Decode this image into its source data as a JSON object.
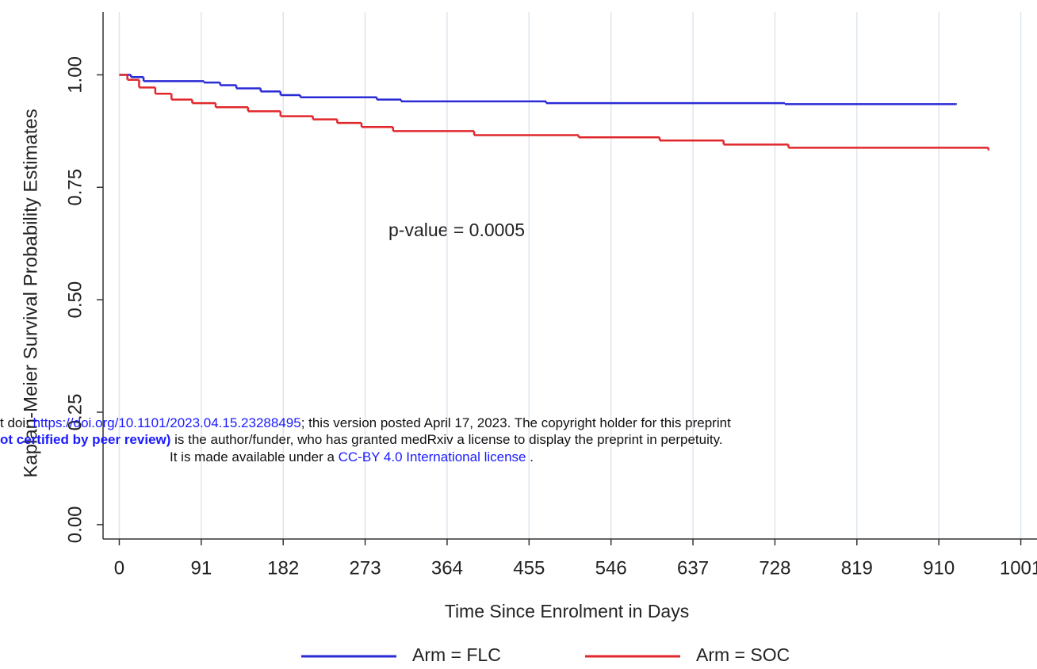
{
  "chart_data": {
    "type": "step",
    "ylabel": "Kaplan-Meier Survival Probability Estimates",
    "xlabel": "Time Since Enrolment in Days",
    "annotation": "p-value = 0.0005",
    "xlim": [
      -18,
      1019
    ],
    "ylim": [
      -0.032,
      1.14
    ],
    "xticks": [
      0,
      91,
      182,
      273,
      364,
      455,
      546,
      637,
      728,
      819,
      910,
      1001
    ],
    "yticks": [
      {
        "value": 0,
        "label": "0.00"
      },
      0.25,
      {
        "value": 0.5,
        "label": "0.50"
      },
      0.75,
      {
        "value": 1,
        "label": "1.00"
      }
    ],
    "grid": "x",
    "series": [
      {
        "name": "Arm = FLC",
        "color": "#2a2ad6",
        "x": [
          0,
          13,
          27,
          94,
          112,
          130,
          157,
          179,
          201,
          286,
          313,
          474,
          739,
          929
        ],
        "values": [
          1.0,
          0.995,
          0.986,
          0.983,
          0.977,
          0.97,
          0.963,
          0.955,
          0.95,
          0.945,
          0.941,
          0.937,
          0.935,
          0.935
        ]
      },
      {
        "name": "Arm = SOC",
        "color": "#e0282c",
        "x": [
          0,
          9,
          22,
          40,
          58,
          81,
          107,
          143,
          179,
          215,
          242,
          269,
          304,
          394,
          510,
          600,
          671,
          743,
          965
        ],
        "values": [
          1.0,
          0.989,
          0.972,
          0.958,
          0.945,
          0.937,
          0.928,
          0.919,
          0.908,
          0.901,
          0.893,
          0.884,
          0.875,
          0.866,
          0.861,
          0.854,
          0.845,
          0.838,
          0.833
        ]
      }
    ]
  },
  "watermark": {
    "line1": [
      "t doi: ",
      "https://doi.org/10.1101/2023.04.15.23288495",
      "; this version posted April 17, 2023. The copyright holder for this preprint"
    ],
    "line2": [
      "ot certified by peer review)",
      " is the author/funder, who has granted medRxiv a license to display the preprint in perpetuity."
    ],
    "line3": [
      "It is made available under a ",
      "CC-BY 4.0 International license",
      " ."
    ]
  }
}
